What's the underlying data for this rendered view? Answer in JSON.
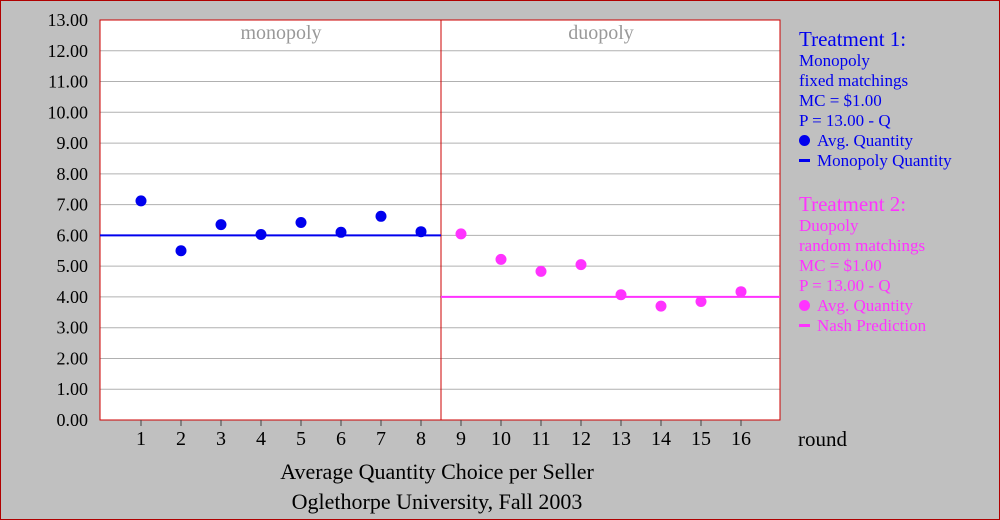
{
  "chart_data": {
    "type": "scatter",
    "title": "Average Quantity Choice per Seller",
    "subtitle": "Oglethorpe University, Fall 2003",
    "xlabel": "round",
    "ylabel": "",
    "ylim": [
      0,
      13
    ],
    "yticks": [
      "0.00",
      "1.00",
      "2.00",
      "3.00",
      "4.00",
      "5.00",
      "6.00",
      "7.00",
      "8.00",
      "9.00",
      "10.00",
      "11.00",
      "12.00",
      "13.00"
    ],
    "xticks": [
      "1",
      "2",
      "3",
      "4",
      "5",
      "6",
      "7",
      "8",
      "9",
      "10",
      "11",
      "12",
      "13",
      "14",
      "15",
      "16"
    ],
    "grid": true,
    "panels": [
      {
        "label": "monopoly",
        "x_range": [
          1,
          8
        ]
      },
      {
        "label": "duopoly",
        "x_range": [
          9,
          16
        ]
      }
    ],
    "series": [
      {
        "name": "Avg. Quantity",
        "color": "#0000ee",
        "x": [
          1,
          2,
          3,
          4,
          5,
          6,
          7,
          8
        ],
        "values": [
          7.12,
          5.5,
          6.35,
          6.03,
          6.42,
          6.1,
          6.62,
          6.12
        ]
      },
      {
        "name": "Avg. Quantity",
        "color": "#ff33ff",
        "x": [
          9,
          10,
          11,
          12,
          13,
          14,
          15,
          16
        ],
        "values": [
          6.05,
          5.22,
          4.83,
          5.05,
          4.07,
          3.7,
          3.85,
          4.17
        ]
      }
    ],
    "reference_lines": [
      {
        "name": "Monopoly Quantity",
        "y": 6.0,
        "x_from": 1,
        "x_to": 8,
        "color": "#0000ee"
      },
      {
        "name": "Nash Prediction",
        "y": 4.0,
        "x_from": 9,
        "x_to": 16,
        "color": "#ff33ff"
      }
    ]
  },
  "legend": {
    "treatment1": {
      "heading": "Treatment 1:",
      "lines": [
        "Monopoly",
        "fixed matchings",
        "MC = $1.00",
        "P = 13.00 - Q"
      ],
      "avg_label": "Avg. Quantity",
      "ref_label": "Monopoly Quantity"
    },
    "treatment2": {
      "heading": "Treatment 2:",
      "lines": [
        "Duopoly",
        "random matchings",
        "MC = $1.00",
        "P = 13.00 - Q"
      ],
      "avg_label": "Avg. Quantity",
      "ref_label": "Nash Prediction"
    }
  }
}
